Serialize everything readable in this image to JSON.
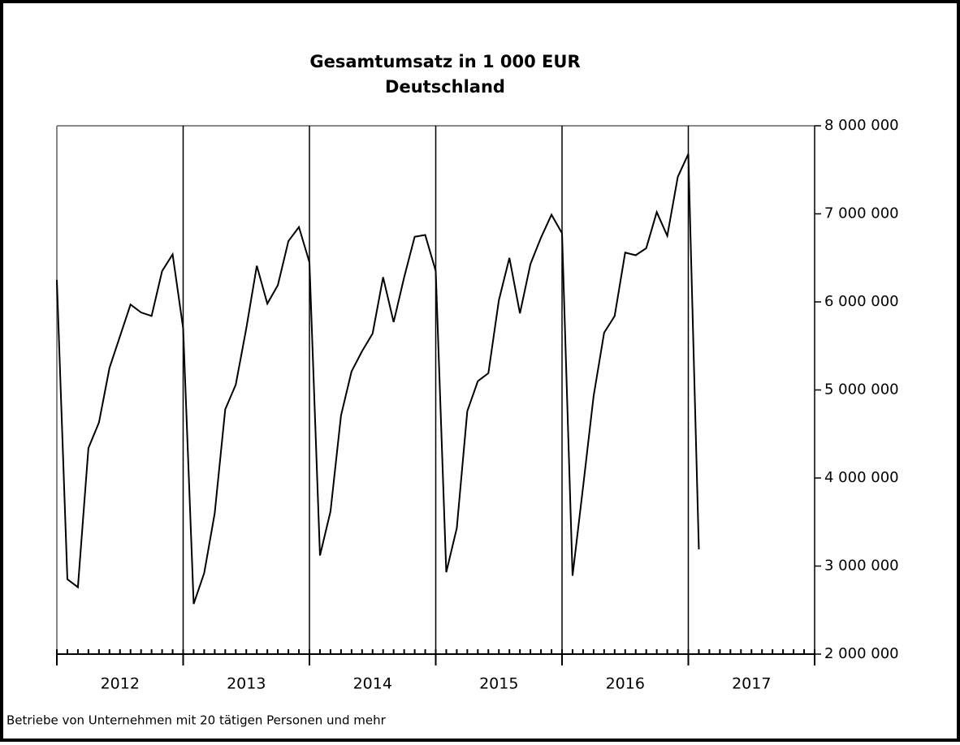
{
  "chart_data": {
    "type": "line",
    "title": "Gesamtumsatz  in  1 000 EUR",
    "subtitle": "Deutschland",
    "note": "Betriebe von Unternehmen mit 20 tätigen Personen und mehr",
    "years": [
      "2012",
      "2013",
      "2014",
      "2015",
      "2016",
      "2017"
    ],
    "series": [
      {
        "color": "#000000",
        "values": [
          6250000,
          2850000,
          2760000,
          4340000,
          4630000,
          5250000,
          5610000,
          5970000,
          5880000,
          5840000,
          6350000,
          6540000,
          5700000,
          2570000,
          2920000,
          3600000,
          4780000,
          5060000,
          5700000,
          6410000,
          5980000,
          6190000,
          6690000,
          6850000,
          6450000,
          3120000,
          3620000,
          4710000,
          5210000,
          5440000,
          5640000,
          6280000,
          5770000,
          6280000,
          6740000,
          6760000,
          6350000,
          2930000,
          3430000,
          4760000,
          5100000,
          5190000,
          6020000,
          6500000,
          5870000,
          6430000,
          6730000,
          6990000,
          6780000,
          2890000,
          3900000,
          4930000,
          5650000,
          5840000,
          6560000,
          6530000,
          6610000,
          7020000,
          6750000,
          7420000,
          7680000,
          3190000
        ]
      }
    ],
    "ylim": [
      2000000,
      8000000
    ],
    "yticks": [
      {
        "value": 2000000,
        "label": "2 000 000"
      },
      {
        "value": 3000000,
        "label": "3 000 000"
      },
      {
        "value": 4000000,
        "label": "4 000 000"
      },
      {
        "value": 5000000,
        "label": "5 000 000"
      },
      {
        "value": 6000000,
        "label": "6 000 000"
      },
      {
        "value": 7000000,
        "label": "7 000 000"
      },
      {
        "value": 8000000,
        "label": "8 000 000"
      }
    ],
    "y_axis_side": "right"
  }
}
